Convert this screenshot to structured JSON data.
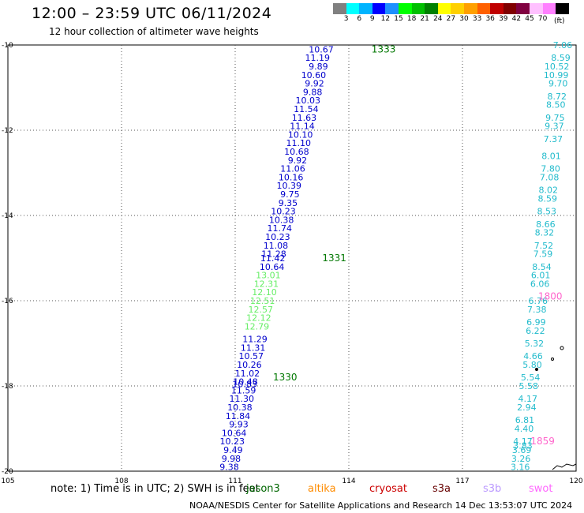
{
  "header": {
    "title": "12:00 – 23:59 UTC 06/11/2024",
    "subtitle": "12 hour collection of altimeter wave heights"
  },
  "legend": {
    "colors": [
      "#808080",
      "#00ffff",
      "#00b4ff",
      "#0000ff",
      "#1e90ff",
      "#00ff00",
      "#00c000",
      "#008000",
      "#ffff00",
      "#ffd000",
      "#ffa000",
      "#ff6000",
      "#c00000",
      "#800000",
      "#800040",
      "#ffc0ff",
      "#ff80ff",
      "#000000"
    ],
    "labels": [
      "3",
      "6",
      "9",
      "12",
      "15",
      "18",
      "21",
      "24",
      "27",
      "30",
      "33",
      "36",
      "39",
      "42",
      "45",
      "70"
    ],
    "unit": "(ft)"
  },
  "axes": {
    "lon_ticks": [
      "105",
      "108",
      "111",
      "114",
      "117",
      "120"
    ],
    "lat_ticks": [
      "-10",
      "-12",
      "-14",
      "-16",
      "-18",
      "-20"
    ]
  },
  "tracks": [
    {
      "color": "#0000cc",
      "label": "1333",
      "label_color": "#007700",
      "label_lat": -10.1,
      "label_lon": 114.6,
      "points": [
        [
          -10.1,
          113.6,
          "10.67"
        ],
        [
          -10.3,
          113.5,
          "11.19"
        ],
        [
          -10.5,
          113.45,
          "9.89"
        ],
        [
          -10.7,
          113.4,
          "10.60"
        ],
        [
          -10.9,
          113.35,
          "9.92"
        ],
        [
          -11.1,
          113.3,
          "9.88"
        ],
        [
          -11.3,
          113.25,
          "10.03"
        ],
        [
          -11.5,
          113.2,
          "11.54"
        ],
        [
          -11.7,
          113.15,
          "11.63"
        ],
        [
          -11.9,
          113.1,
          "11.14"
        ],
        [
          -12.1,
          113.05,
          "10.10"
        ],
        [
          -12.3,
          113.0,
          "11.10"
        ],
        [
          -12.5,
          112.95,
          "10.68"
        ],
        [
          -12.7,
          112.9,
          "9.92"
        ],
        [
          -12.9,
          112.85,
          "11.06"
        ],
        [
          -13.1,
          112.8,
          "10.16"
        ],
        [
          -13.3,
          112.75,
          "10.39"
        ],
        [
          -13.5,
          112.7,
          "9.75"
        ],
        [
          -13.7,
          112.65,
          "9.35"
        ],
        [
          -13.9,
          112.6,
          "10.23"
        ],
        [
          -14.1,
          112.55,
          "10.38"
        ],
        [
          -14.3,
          112.5,
          "11.74"
        ],
        [
          -14.5,
          112.45,
          "10.23"
        ],
        [
          -14.7,
          112.4,
          "11.08"
        ],
        [
          -14.9,
          112.35,
          "11.28"
        ],
        [
          -15.0,
          112.32,
          "11.42"
        ],
        [
          -15.2,
          112.3,
          "10.64"
        ]
      ]
    },
    {
      "color": "#66ee66",
      "label": "1331",
      "label_color": "#007700",
      "label_lat": -15.0,
      "label_lon": 113.3,
      "points": [
        [
          -15.4,
          112.2,
          "13.01"
        ],
        [
          -15.6,
          112.15,
          "12.31"
        ],
        [
          -15.8,
          112.1,
          "12.10"
        ],
        [
          -16.0,
          112.05,
          "12.51"
        ],
        [
          -16.2,
          112.0,
          "12.57"
        ],
        [
          -16.4,
          111.95,
          "12.12"
        ],
        [
          -16.6,
          111.9,
          "12.79"
        ]
      ]
    },
    {
      "color": "#0000cc",
      "label": "1330",
      "label_color": "#007700",
      "label_lat": -17.8,
      "label_lon": 112.0,
      "points": [
        [
          -16.9,
          111.85,
          "11.29"
        ],
        [
          -17.1,
          111.8,
          "11.31"
        ],
        [
          -17.3,
          111.75,
          "10.57"
        ],
        [
          -17.5,
          111.7,
          "10.26"
        ],
        [
          -17.7,
          111.65,
          "11.02"
        ],
        [
          -17.9,
          111.6,
          "10.48"
        ],
        [
          -17.95,
          111.58,
          "10.83"
        ],
        [
          -18.1,
          111.55,
          "11.59"
        ],
        [
          -18.3,
          111.5,
          "11.30"
        ],
        [
          -18.5,
          111.45,
          "10.38"
        ],
        [
          -18.7,
          111.4,
          "11.84"
        ],
        [
          -18.9,
          111.35,
          "9.93"
        ],
        [
          -19.1,
          111.3,
          "10.64"
        ],
        [
          -19.3,
          111.25,
          "10.23"
        ],
        [
          -19.5,
          111.2,
          "9.49"
        ],
        [
          -19.7,
          111.15,
          "9.98"
        ],
        [
          -19.9,
          111.1,
          "9.38"
        ]
      ]
    },
    {
      "color": "#22bbcc",
      "label": "1800",
      "label_color": "#ff66cc",
      "label_lat": -15.9,
      "label_lon": 119.0,
      "points": [
        [
          -10.0,
          119.9,
          "7.06"
        ],
        [
          -10.3,
          119.85,
          "8.59"
        ],
        [
          -10.5,
          119.82,
          "10.52"
        ],
        [
          -10.7,
          119.8,
          "10.99"
        ],
        [
          -10.9,
          119.78,
          "9.70"
        ],
        [
          -11.2,
          119.75,
          "8.72"
        ],
        [
          -11.4,
          119.72,
          "8.50"
        ],
        [
          -11.7,
          119.7,
          "9.75"
        ],
        [
          -11.9,
          119.68,
          "9.37"
        ],
        [
          -12.2,
          119.65,
          "7.37"
        ],
        [
          -12.6,
          119.6,
          "8.01"
        ],
        [
          -12.9,
          119.58,
          "7.80"
        ],
        [
          -13.1,
          119.55,
          "7.08"
        ],
        [
          -13.4,
          119.52,
          "8.02"
        ],
        [
          -13.6,
          119.5,
          "8.59"
        ],
        [
          -13.9,
          119.48,
          "8.53"
        ],
        [
          -14.2,
          119.45,
          "8.66"
        ],
        [
          -14.4,
          119.42,
          "8.32"
        ],
        [
          -14.7,
          119.4,
          "7.52"
        ],
        [
          -14.9,
          119.38,
          "7.59"
        ],
        [
          -15.2,
          119.35,
          "8.54"
        ],
        [
          -15.4,
          119.32,
          "6.01"
        ],
        [
          -15.6,
          119.3,
          "6.06"
        ],
        [
          -16.0,
          119.25,
          "6.76"
        ],
        [
          -16.2,
          119.22,
          "7.38"
        ],
        [
          -16.5,
          119.2,
          "6.99"
        ],
        [
          -16.7,
          119.18,
          "6.22"
        ],
        [
          -17.0,
          119.15,
          "5.32"
        ],
        [
          -17.3,
          119.12,
          "4.66"
        ],
        [
          -17.5,
          119.1,
          "5.80"
        ],
        [
          -17.8,
          119.05,
          "5.54"
        ],
        [
          -18.0,
          119.0,
          "5.58"
        ],
        [
          -18.3,
          118.98,
          "4.17"
        ],
        [
          -18.5,
          118.95,
          "2.94"
        ],
        [
          -18.8,
          118.9,
          "6.81"
        ],
        [
          -19.0,
          118.88,
          "4.40"
        ],
        [
          -19.3,
          118.85,
          "4.17"
        ],
        [
          -19.4,
          118.85,
          "3.83"
        ],
        [
          -19.5,
          118.82,
          "3.69"
        ],
        [
          -19.7,
          118.8,
          "3.26"
        ],
        [
          -19.9,
          118.78,
          "3.16"
        ]
      ]
    }
  ],
  "extra_labels": [
    {
      "text": "1859",
      "lat": -19.3,
      "lon": 118.8,
      "color": "#ff66cc"
    }
  ],
  "footer": {
    "note": "note:  1) Time is in UTC;  2) SWH is in feet",
    "satellites": [
      {
        "name": "jason3",
        "color": "#006600"
      },
      {
        "name": "altika",
        "color": "#ff8c00"
      },
      {
        "name": "cryosat",
        "color": "#cc0000"
      },
      {
        "name": "s3a",
        "color": "#660000"
      },
      {
        "name": "s3b",
        "color": "#bb99ff"
      },
      {
        "name": "swot",
        "color": "#ff66ff"
      }
    ],
    "credit": "NOAA/NESDIS Center for Satellite Applications and Research    14 Dec 13:53:07 UTC 2024"
  }
}
